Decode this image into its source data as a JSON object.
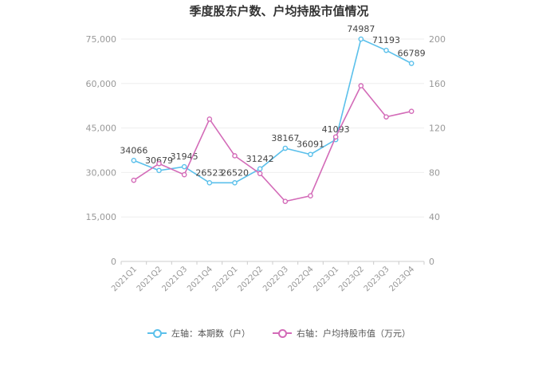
{
  "chart_data": {
    "type": "line",
    "title": "季度股东户数、户均持股市值情况",
    "categories": [
      "2021Q1",
      "2021Q2",
      "2021Q3",
      "2021Q4",
      "2022Q1",
      "2022Q2",
      "2022Q3",
      "2022Q4",
      "2023Q1",
      "2023Q2",
      "2023Q3",
      "2023Q4"
    ],
    "left_axis": {
      "ylim": [
        0,
        75000
      ],
      "ticks": [
        "0",
        "15,000",
        "30,000",
        "45,000",
        "60,000",
        "75,000"
      ]
    },
    "right_axis": {
      "ylim": [
        0,
        200
      ],
      "ticks": [
        "0",
        "40",
        "80",
        "120",
        "160",
        "200"
      ]
    },
    "grid": true,
    "legend_position": "bottom",
    "series": [
      {
        "name": "左轴：本期数（户）",
        "axis": "left",
        "color": "#5bc0eb",
        "values": [
          34066,
          30679,
          31945,
          26523,
          26520,
          31242,
          38167,
          36091,
          41093,
          74987,
          71193,
          66789
        ],
        "labels": [
          "34066",
          "30679",
          "31945",
          "26523",
          "26520",
          "31242",
          "38167",
          "36091",
          "41093",
          "74987",
          "71193",
          "66789"
        ]
      },
      {
        "name": "右轴：户均持股市值（万元）",
        "axis": "right",
        "color": "#d36bb8",
        "values": [
          73,
          88,
          78,
          128,
          95,
          79,
          54,
          59,
          112,
          158,
          130,
          135
        ]
      }
    ]
  }
}
